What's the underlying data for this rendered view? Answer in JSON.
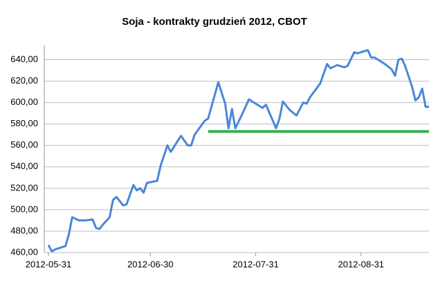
{
  "chart_data": {
    "type": "line",
    "title": "Soja - kontrakty grudzień 2012, CBOT",
    "x": [
      "2012-05-31",
      "2012-06-01",
      "2012-06-02",
      "2012-06-05",
      "2012-06-06",
      "2012-06-07",
      "2012-06-09",
      "2012-06-11",
      "2012-06-13",
      "2012-06-14",
      "2012-06-15",
      "2012-06-16",
      "2012-06-18",
      "2012-06-19",
      "2012-06-20",
      "2012-06-22",
      "2012-06-23",
      "2012-06-25",
      "2012-06-26",
      "2012-06-27",
      "2012-06-28",
      "2012-06-29",
      "2012-07-02",
      "2012-07-03",
      "2012-07-05",
      "2012-07-06",
      "2012-07-09",
      "2012-07-11",
      "2012-07-12",
      "2012-07-13",
      "2012-07-16",
      "2012-07-17",
      "2012-07-20",
      "2012-07-22",
      "2012-07-23",
      "2012-07-24",
      "2012-07-25",
      "2012-07-27",
      "2012-07-29",
      "2012-07-30",
      "2012-08-02",
      "2012-08-03",
      "2012-08-06",
      "2012-08-07",
      "2012-08-08",
      "2012-08-10",
      "2012-08-12",
      "2012-08-14",
      "2012-08-15",
      "2012-08-16",
      "2012-08-19",
      "2012-08-21",
      "2012-08-22",
      "2012-08-24",
      "2012-08-26",
      "2012-08-27",
      "2012-08-29",
      "2012-08-30",
      "2012-09-02",
      "2012-09-03",
      "2012-09-04",
      "2012-09-07",
      "2012-09-09",
      "2012-09-10",
      "2012-09-11",
      "2012-09-12",
      "2012-09-13",
      "2012-09-15",
      "2012-09-16",
      "2012-09-17",
      "2012-09-18",
      "2012-09-19",
      "2012-09-20"
    ],
    "series": [
      {
        "color": "#4a86d8",
        "values": [
          467,
          461,
          463,
          466,
          477,
          493,
          490,
          490,
          491,
          483,
          482,
          486,
          493,
          509,
          512,
          504,
          505,
          523,
          518,
          520,
          516,
          525,
          527,
          541,
          560,
          554,
          569,
          560,
          560,
          570,
          583,
          585,
          619,
          599,
          576,
          594,
          576,
          589,
          603,
          601,
          595,
          598,
          576,
          585,
          601,
          593,
          588,
          600,
          599,
          605,
          618,
          636,
          632,
          635,
          633,
          634,
          647,
          646,
          649,
          642,
          642,
          636,
          631,
          625,
          640,
          641,
          634,
          615,
          602,
          605,
          613,
          596,
          596
        ]
      }
    ],
    "reference_line": {
      "value": 573,
      "x": [
        "2012-07-17",
        "2012-09-20"
      ],
      "color": "#2db34a"
    },
    "xlim": [
      "2012-05-31",
      "2012-09-20"
    ],
    "xticks": [
      "2012-05-31",
      "2012-06-30",
      "2012-07-31",
      "2012-08-31"
    ],
    "ylim": [
      460,
      650
    ],
    "yticks": [
      {
        "value": 460,
        "label": "460,00"
      },
      {
        "value": 480,
        "label": "480,00"
      },
      {
        "value": 500,
        "label": "500,00"
      },
      {
        "value": 520,
        "label": "520,00"
      },
      {
        "value": 540,
        "label": "540,00"
      },
      {
        "value": 560,
        "label": "560,00"
      },
      {
        "value": 580,
        "label": "580,00"
      },
      {
        "value": 600,
        "label": "600,00"
      },
      {
        "value": 620,
        "label": "620,00"
      },
      {
        "value": 640,
        "label": "640,00"
      }
    ],
    "grid": true
  }
}
